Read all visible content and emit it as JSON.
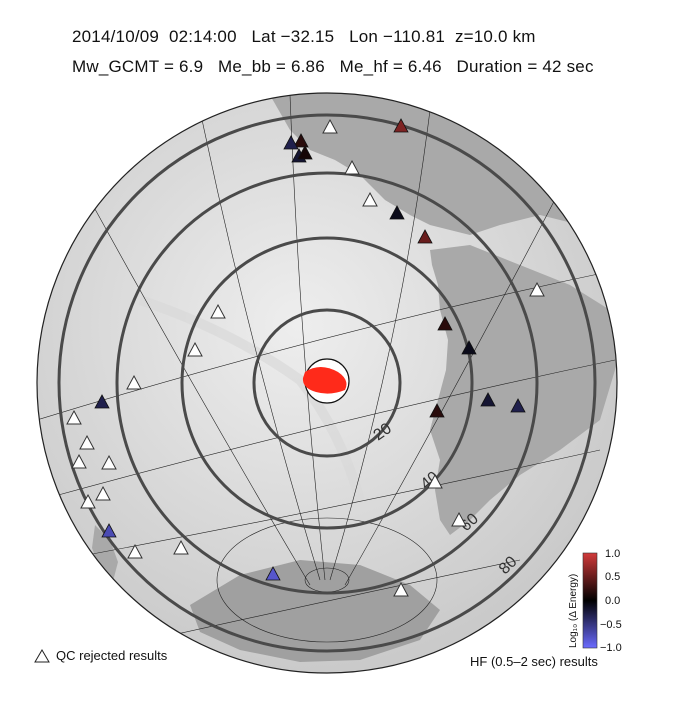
{
  "header": {
    "date": "2014/10/09",
    "time": "02:14:00",
    "lat": "Lat −32.15",
    "lon": "Lon −110.81",
    "depth": "z=10.0 km",
    "mw": "Mw_GCMT = 6.9",
    "me_bb": "Me_bb = 6.86",
    "me_hf": "Me_hf = 6.46",
    "duration": "Duration = 42 sec"
  },
  "rings": {
    "labels": [
      "20",
      "40",
      "60",
      "80"
    ]
  },
  "colorbar": {
    "title": "Log₁₀ (Δ Energy)",
    "ticks": [
      "1.0",
      "0.5",
      "0.0",
      "−0.5",
      "−1.0"
    ],
    "colors": {
      "high": "#c8202a",
      "mid": "#000000",
      "low": "#3a3ad0"
    }
  },
  "legend": {
    "qc_label": "QC rejected results",
    "hf_label": "HF (0.5–2 sec) results"
  },
  "stations": [
    {
      "value": 0.6,
      "qc": false
    },
    {
      "value": 0.2,
      "qc": false
    },
    {
      "value": -0.3,
      "qc": false
    },
    {
      "value": -0.2,
      "qc": false
    },
    {
      "value": null,
      "qc": true
    },
    {
      "value": 0.1,
      "qc": false
    },
    {
      "value": null,
      "qc": true
    },
    {
      "value": null,
      "qc": true
    },
    {
      "value": -0.1,
      "qc": false
    },
    {
      "value": 0.5,
      "qc": false
    },
    {
      "value": null,
      "qc": true
    },
    {
      "value": 0.2,
      "qc": false
    },
    {
      "value": -0.1,
      "qc": false
    },
    {
      "value": -0.2,
      "qc": false
    },
    {
      "value": -0.3,
      "qc": false
    },
    {
      "value": 0.2,
      "qc": false
    },
    {
      "value": null,
      "qc": true
    },
    {
      "value": null,
      "qc": true
    },
    {
      "value": null,
      "qc": true
    },
    {
      "value": null,
      "qc": true
    },
    {
      "value": -0.3,
      "qc": false
    },
    {
      "value": null,
      "qc": true
    },
    {
      "value": null,
      "qc": true
    },
    {
      "value": null,
      "qc": true
    },
    {
      "value": null,
      "qc": true
    },
    {
      "value": null,
      "qc": true
    },
    {
      "value": null,
      "qc": true
    },
    {
      "value": -0.7,
      "qc": false
    },
    {
      "value": null,
      "qc": true
    },
    {
      "value": null,
      "qc": true
    },
    {
      "value": -0.8,
      "qc": false
    },
    {
      "value": null,
      "qc": true
    },
    {
      "value": null,
      "qc": true
    }
  ]
}
